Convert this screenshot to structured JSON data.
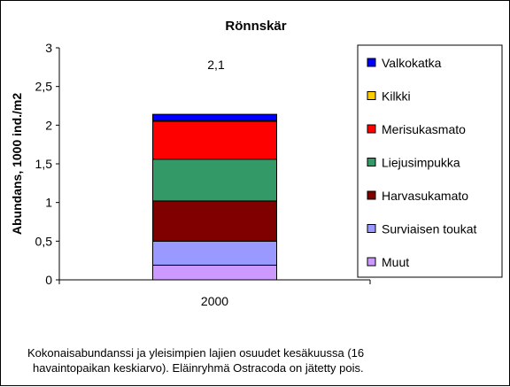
{
  "chart_data": {
    "type": "bar",
    "stacked": true,
    "title": "Rönnskär",
    "ylabel": "Abundans, 1000 ind./m2",
    "xlabel": "",
    "categories": [
      "2000"
    ],
    "ylim": [
      0,
      3
    ],
    "yticks": [
      "0",
      "0,5",
      "1",
      "1,5",
      "2",
      "2,5",
      "3"
    ],
    "ytick_values": [
      0,
      0.5,
      1,
      1.5,
      2,
      2.5,
      3
    ],
    "grid": false,
    "legend_position": "right",
    "total_label": "2,1",
    "series": [
      {
        "name": "Muut",
        "values": [
          0.19
        ],
        "color": "#cc99ff"
      },
      {
        "name": "Surviaisen toukat",
        "values": [
          0.31
        ],
        "color": "#9999ff"
      },
      {
        "name": "Harvasukamato",
        "values": [
          0.52
        ],
        "color": "#800000"
      },
      {
        "name": "Liejusimpukka",
        "values": [
          0.54
        ],
        "color": "#339966"
      },
      {
        "name": "Merisukasmato",
        "values": [
          0.49
        ],
        "color": "#ff0000"
      },
      {
        "name": "Kilkki",
        "values": [
          0.01
        ],
        "color": "#ffcc00"
      },
      {
        "name": "Valkokatka",
        "values": [
          0.08
        ],
        "color": "#0000ff"
      }
    ]
  },
  "caption": {
    "line1": "Kokonaisabundanssi ja yleisimpien lajien osuudet kesäkuussa (16",
    "line2": "havaintopaikan keskiarvo). Eläinryhmä Ostracoda on jätetty pois."
  }
}
